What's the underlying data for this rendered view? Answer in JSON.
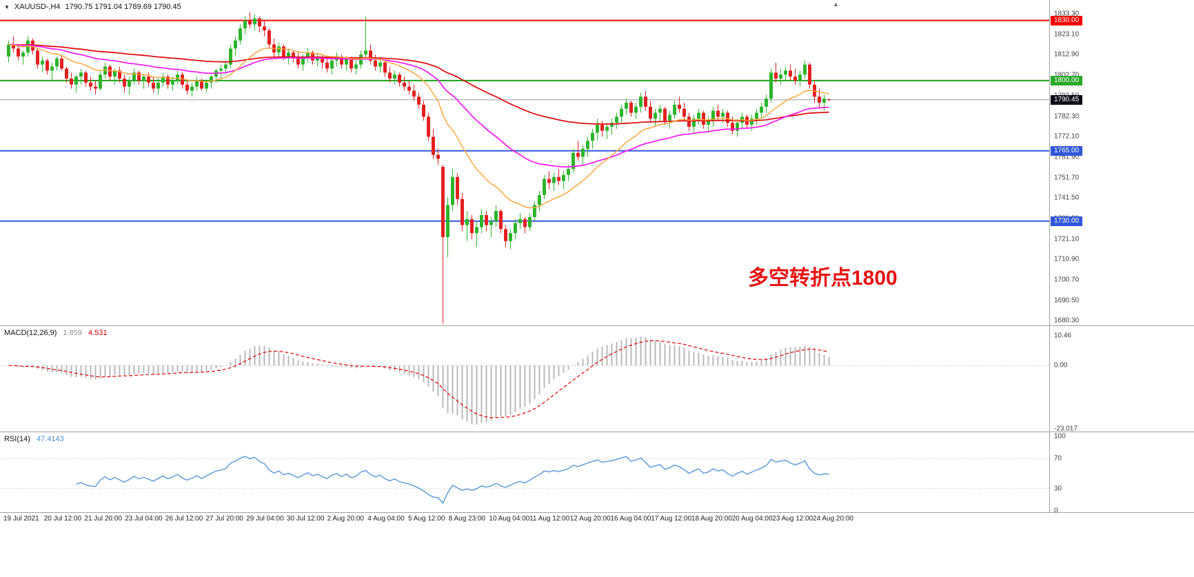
{
  "window": {
    "bg": "#ffffff"
  },
  "header": {
    "collapse_icon": "▼",
    "symbol_timeframe": "XAUUSD-,H4",
    "ohlc": "1790.75 1791.04 1789.69 1790.45"
  },
  "icons": {
    "shift_marker": "▲"
  },
  "annotation": {
    "text": "多空转折点1800",
    "color": "#e81212"
  },
  "price_axis": {
    "ticks": [
      "1833.30",
      "1823.10",
      "1812.90",
      "1802.70",
      "1792.50",
      "1782.30",
      "1772.10",
      "1761.90",
      "1751.70",
      "1741.50",
      "1731.30",
      "1721.10",
      "1710.90",
      "1700.70",
      "1690.50",
      "1680.30"
    ]
  },
  "time_axis": {
    "labels": [
      "19 Jul 2021",
      "20 Jul 12:00",
      "21 Jul 20:00",
      "23 Jul 04:00",
      "26 Jul 12:00",
      "27 Jul 20:00",
      "29 Jul 04:00",
      "30 Jul 12:00",
      "2 Aug 20:00",
      "4 Aug 04:00",
      "5 Aug 12:00",
      "8 Aug 23:00",
      "10 Aug 04:00",
      "11 Aug 12:00",
      "12 Aug 20:00",
      "16 Aug 04:00",
      "17 Aug 12:00",
      "18 Aug 20:00",
      "20 Aug 04:00",
      "23 Aug 12:00",
      "24 Aug 20:00"
    ]
  },
  "chart_data": [
    {
      "type": "candlestick",
      "title": "XAUUSD-,H4",
      "ylim": [
        1679.4,
        1833.3
      ],
      "bull_color": "#2cb52c",
      "bear_color": "#e32020",
      "hlines": [
        {
          "name": "resistance-1830",
          "value": 1830.0,
          "label": "1830.00",
          "line_color": "#f50000",
          "label_bg": "#f50000",
          "line_width": 2
        },
        {
          "name": "pivot-1800",
          "value": 1800.0,
          "label": "1800.00",
          "line_color": "#18A018",
          "label_bg": "#2aa82a",
          "line_width": 2
        },
        {
          "name": "current-price",
          "value": 1790.45,
          "label": "1790.45",
          "line_color": "#9aa0a6",
          "label_bg": "#0c0c16",
          "line_width": 1
        },
        {
          "name": "support-1765",
          "value": 1765.0,
          "label": "1765.00",
          "line_color": "#3056d8",
          "label_bg": "#3056d8",
          "line_width": 2
        },
        {
          "name": "support-1730",
          "value": 1730.0,
          "label": "1730.00",
          "line_color": "#3056d8",
          "label_bg": "#3056d8",
          "line_width": 2
        }
      ],
      "overlays": [
        {
          "name": "ma-slow-red",
          "period": 110,
          "color": "#dd1111",
          "width": 1.8
        },
        {
          "name": "ma-mid-magenta",
          "period": 45,
          "color": "#f321f3",
          "width": 1.8
        },
        {
          "name": "ma-fast-orange",
          "period": 18,
          "color": "#ffa640",
          "width": 1.5
        }
      ],
      "ohlc": [
        [
          1812,
          1820,
          1809,
          1818
        ],
        [
          1818,
          1822,
          1814,
          1816
        ],
        [
          1816,
          1817,
          1810,
          1812
        ],
        [
          1812,
          1815,
          1808,
          1814
        ],
        [
          1814,
          1822,
          1812,
          1820
        ],
        [
          1820,
          1821,
          1813,
          1815
        ],
        [
          1815,
          1816,
          1806,
          1808
        ],
        [
          1808,
          1812,
          1804,
          1810
        ],
        [
          1810,
          1811,
          1803,
          1805
        ],
        [
          1805,
          1809,
          1800,
          1807
        ],
        [
          1807,
          1812,
          1805,
          1811
        ],
        [
          1811,
          1813,
          1805,
          1806
        ],
        [
          1806,
          1807,
          1799,
          1801
        ],
        [
          1801,
          1804,
          1796,
          1798
        ],
        [
          1798,
          1803,
          1794,
          1802
        ],
        [
          1802,
          1806,
          1798,
          1804
        ],
        [
          1804,
          1805,
          1797,
          1799
        ],
        [
          1799,
          1802,
          1795,
          1797
        ],
        [
          1797,
          1800,
          1793,
          1796
        ],
        [
          1796,
          1805,
          1795,
          1803
        ],
        [
          1803,
          1809,
          1801,
          1807
        ],
        [
          1807,
          1808,
          1800,
          1802
        ],
        [
          1802,
          1806,
          1798,
          1805
        ],
        [
          1805,
          1807,
          1799,
          1801
        ],
        [
          1801,
          1803,
          1794,
          1797
        ],
        [
          1797,
          1802,
          1793,
          1800
        ],
        [
          1800,
          1806,
          1798,
          1804
        ],
        [
          1804,
          1805,
          1798,
          1800
        ],
        [
          1800,
          1803,
          1796,
          1802
        ],
        [
          1802,
          1804,
          1797,
          1799
        ],
        [
          1799,
          1802,
          1794,
          1796
        ],
        [
          1796,
          1801,
          1793,
          1799
        ],
        [
          1799,
          1804,
          1797,
          1802
        ],
        [
          1802,
          1803,
          1796,
          1798
        ],
        [
          1798,
          1802,
          1795,
          1800
        ],
        [
          1800,
          1805,
          1798,
          1803
        ],
        [
          1803,
          1804,
          1796,
          1798
        ],
        [
          1798,
          1800,
          1793,
          1795
        ],
        [
          1795,
          1799,
          1792,
          1797
        ],
        [
          1797,
          1802,
          1795,
          1800
        ],
        [
          1800,
          1801,
          1795,
          1796
        ],
        [
          1796,
          1800,
          1794,
          1799
        ],
        [
          1799,
          1803,
          1796,
          1802
        ],
        [
          1802,
          1806,
          1799,
          1805
        ],
        [
          1805,
          1808,
          1801,
          1806
        ],
        [
          1806,
          1810,
          1803,
          1808
        ],
        [
          1808,
          1818,
          1806,
          1816
        ],
        [
          1816,
          1822,
          1812,
          1820
        ],
        [
          1820,
          1828,
          1818,
          1826
        ],
        [
          1826,
          1832,
          1823,
          1830
        ],
        [
          1830,
          1834,
          1826,
          1828
        ],
        [
          1828,
          1833,
          1825,
          1831
        ],
        [
          1831,
          1832,
          1824,
          1827
        ],
        [
          1827,
          1830,
          1822,
          1825
        ],
        [
          1825,
          1826,
          1816,
          1818
        ],
        [
          1818,
          1821,
          1812,
          1814
        ],
        [
          1814,
          1819,
          1811,
          1817
        ],
        [
          1817,
          1818,
          1810,
          1812
        ],
        [
          1812,
          1816,
          1808,
          1814
        ],
        [
          1814,
          1815,
          1809,
          1811
        ],
        [
          1811,
          1814,
          1806,
          1808
        ],
        [
          1808,
          1813,
          1805,
          1811
        ],
        [
          1811,
          1816,
          1809,
          1814
        ],
        [
          1814,
          1815,
          1808,
          1810
        ],
        [
          1810,
          1814,
          1807,
          1812
        ],
        [
          1812,
          1813,
          1806,
          1809
        ],
        [
          1809,
          1812,
          1804,
          1806
        ],
        [
          1806,
          1811,
          1803,
          1810
        ],
        [
          1810,
          1814,
          1807,
          1812
        ],
        [
          1812,
          1813,
          1806,
          1808
        ],
        [
          1808,
          1812,
          1805,
          1811
        ],
        [
          1811,
          1812,
          1804,
          1806
        ],
        [
          1806,
          1810,
          1803,
          1808
        ],
        [
          1808,
          1815,
          1806,
          1813
        ],
        [
          1813,
          1832,
          1810,
          1815
        ],
        [
          1815,
          1818,
          1808,
          1810
        ],
        [
          1810,
          1813,
          1805,
          1807
        ],
        [
          1807,
          1811,
          1804,
          1809
        ],
        [
          1809,
          1810,
          1802,
          1804
        ],
        [
          1804,
          1807,
          1799,
          1801
        ],
        [
          1801,
          1805,
          1798,
          1803
        ],
        [
          1803,
          1804,
          1797,
          1799
        ],
        [
          1799,
          1802,
          1795,
          1797
        ],
        [
          1797,
          1800,
          1793,
          1795
        ],
        [
          1795,
          1798,
          1790,
          1792
        ],
        [
          1792,
          1794,
          1786,
          1788
        ],
        [
          1788,
          1790,
          1780,
          1782
        ],
        [
          1782,
          1784,
          1770,
          1772
        ],
        [
          1772,
          1776,
          1761,
          1763
        ],
        [
          1763,
          1766,
          1758,
          1761
        ],
        [
          1757,
          1758,
          1679,
          1722
        ],
        [
          1722,
          1742,
          1712,
          1738
        ],
        [
          1738,
          1756,
          1735,
          1752
        ],
        [
          1752,
          1754,
          1738,
          1741
        ],
        [
          1741,
          1744,
          1725,
          1728
        ],
        [
          1728,
          1735,
          1720,
          1731
        ],
        [
          1731,
          1733,
          1721,
          1724
        ],
        [
          1724,
          1730,
          1717,
          1727
        ],
        [
          1727,
          1736,
          1724,
          1733
        ],
        [
          1733,
          1735,
          1725,
          1728
        ],
        [
          1728,
          1732,
          1722,
          1730
        ],
        [
          1730,
          1738,
          1727,
          1735
        ],
        [
          1735,
          1736,
          1724,
          1726
        ],
        [
          1726,
          1728,
          1717,
          1720
        ],
        [
          1720,
          1726,
          1716,
          1724
        ],
        [
          1724,
          1731,
          1721,
          1729
        ],
        [
          1729,
          1734,
          1726,
          1731
        ],
        [
          1731,
          1732,
          1724,
          1727
        ],
        [
          1727,
          1734,
          1725,
          1732
        ],
        [
          1732,
          1740,
          1730,
          1738
        ],
        [
          1738,
          1745,
          1735,
          1743
        ],
        [
          1743,
          1753,
          1741,
          1751
        ],
        [
          1751,
          1755,
          1746,
          1749
        ],
        [
          1749,
          1754,
          1745,
          1752
        ],
        [
          1752,
          1756,
          1748,
          1750
        ],
        [
          1750,
          1755,
          1746,
          1753
        ],
        [
          1753,
          1758,
          1750,
          1756
        ],
        [
          1756,
          1766,
          1754,
          1764
        ],
        [
          1764,
          1770,
          1760,
          1762
        ],
        [
          1762,
          1768,
          1758,
          1766
        ],
        [
          1766,
          1772,
          1762,
          1770
        ],
        [
          1770,
          1776,
          1766,
          1774
        ],
        [
          1774,
          1781,
          1770,
          1778
        ],
        [
          1778,
          1780,
          1772,
          1775
        ],
        [
          1775,
          1779,
          1771,
          1777
        ],
        [
          1777,
          1781,
          1773,
          1779
        ],
        [
          1779,
          1784,
          1776,
          1782
        ],
        [
          1782,
          1788,
          1779,
          1786
        ],
        [
          1786,
          1791,
          1783,
          1789
        ],
        [
          1789,
          1790,
          1782,
          1784
        ],
        [
          1784,
          1789,
          1781,
          1787
        ],
        [
          1787,
          1794,
          1784,
          1792
        ],
        [
          1792,
          1795,
          1785,
          1787
        ],
        [
          1787,
          1790,
          1779,
          1781
        ],
        [
          1781,
          1786,
          1777,
          1784
        ],
        [
          1784,
          1788,
          1780,
          1786
        ],
        [
          1786,
          1787,
          1778,
          1780
        ],
        [
          1780,
          1785,
          1776,
          1783
        ],
        [
          1783,
          1790,
          1781,
          1788
        ],
        [
          1788,
          1792,
          1784,
          1786
        ],
        [
          1786,
          1789,
          1780,
          1782
        ],
        [
          1782,
          1784,
          1775,
          1777
        ],
        [
          1777,
          1783,
          1774,
          1781
        ],
        [
          1781,
          1786,
          1778,
          1784
        ],
        [
          1784,
          1785,
          1776,
          1778
        ],
        [
          1778,
          1782,
          1774,
          1780
        ],
        [
          1780,
          1787,
          1777,
          1785
        ],
        [
          1785,
          1788,
          1780,
          1782
        ],
        [
          1782,
          1786,
          1779,
          1784
        ],
        [
          1784,
          1785,
          1777,
          1779
        ],
        [
          1779,
          1782,
          1773,
          1775
        ],
        [
          1775,
          1781,
          1772,
          1779
        ],
        [
          1779,
          1784,
          1776,
          1782
        ],
        [
          1782,
          1783,
          1776,
          1778
        ],
        [
          1778,
          1783,
          1775,
          1781
        ],
        [
          1781,
          1786,
          1778,
          1784
        ],
        [
          1784,
          1789,
          1781,
          1787
        ],
        [
          1787,
          1793,
          1784,
          1791
        ],
        [
          1791,
          1806,
          1789,
          1804
        ],
        [
          1804,
          1809,
          1799,
          1801
        ],
        [
          1801,
          1806,
          1798,
          1803
        ],
        [
          1803,
          1807,
          1800,
          1805
        ],
        [
          1805,
          1808,
          1800,
          1802
        ],
        [
          1802,
          1806,
          1798,
          1800
        ],
        [
          1800,
          1805,
          1797,
          1803
        ],
        [
          1803,
          1810,
          1801,
          1808
        ],
        [
          1808,
          1809,
          1796,
          1798
        ],
        [
          1798,
          1800,
          1789,
          1792
        ],
        [
          1792,
          1796,
          1786,
          1789
        ],
        [
          1789,
          1793,
          1785,
          1791
        ],
        [
          1790.75,
          1791.04,
          1789.69,
          1790.45
        ]
      ]
    },
    {
      "type": "macd",
      "label": "MACD(12,26,9)",
      "value_main": "1.859",
      "value_signal": "4.531",
      "params": [
        12,
        26,
        9
      ],
      "axis": [
        "10.46",
        "0.00",
        "-23.017"
      ],
      "colors": {
        "histogram": "#b8b8b8",
        "signal": "#e00000",
        "zero": "#b0b0b0"
      }
    },
    {
      "type": "rsi",
      "label": "RSI(14)",
      "value": "47.4143",
      "period": 14,
      "levels": [
        70,
        30
      ],
      "axis": [
        "100",
        "70",
        "30",
        "0"
      ],
      "color": "#4a90d9",
      "level_color": "#c4c4c4"
    }
  ]
}
